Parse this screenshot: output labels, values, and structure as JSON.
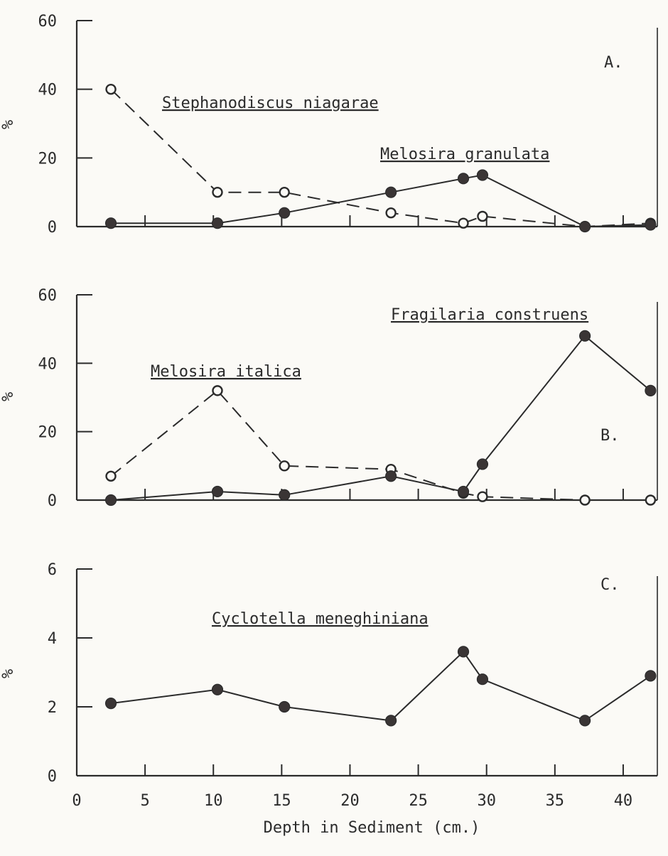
{
  "chart_data": [
    {
      "type": "line",
      "panel_label": "A.",
      "ylabel": "%",
      "ylim": [
        0,
        60
      ],
      "yticks": [
        0,
        20,
        40,
        60
      ],
      "series": [
        {
          "name": "Stephanodiscus niagarae",
          "marker": "open",
          "style": "dashed",
          "x": [
            2.5,
            10.3,
            15.2,
            23,
            28.3,
            29.7,
            37.2,
            42
          ],
          "y": [
            40,
            10,
            10,
            4,
            1,
            3,
            0,
            1
          ]
        },
        {
          "name": "Melosira granulata",
          "marker": "filled",
          "style": "solid",
          "x": [
            2.5,
            10.3,
            15.2,
            23,
            28.3,
            29.7,
            37.2,
            42
          ],
          "y": [
            1,
            1,
            4,
            10,
            14,
            15,
            0,
            0.5
          ]
        }
      ]
    },
    {
      "type": "line",
      "panel_label": "B.",
      "ylabel": "%",
      "ylim": [
        0,
        60
      ],
      "yticks": [
        0,
        20,
        40,
        60
      ],
      "series": [
        {
          "name": "Melosira italica",
          "marker": "open",
          "style": "dashed",
          "x": [
            2.5,
            10.3,
            15.2,
            23,
            28.3,
            29.7,
            37.2,
            42
          ],
          "y": [
            7,
            32,
            10,
            9,
            2,
            1,
            0,
            0
          ]
        },
        {
          "name": "Fragilaria construens",
          "marker": "filled",
          "style": "solid",
          "x": [
            2.5,
            10.3,
            15.2,
            23,
            28.3,
            29.7,
            37.2,
            42
          ],
          "y": [
            0,
            2.5,
            1.5,
            7,
            2.5,
            10.5,
            48,
            32
          ]
        }
      ]
    },
    {
      "type": "line",
      "panel_label": "C.",
      "ylabel": "%",
      "ylim": [
        0,
        6
      ],
      "yticks": [
        0,
        2,
        4,
        6
      ],
      "xlabel": "Depth in Sediment (cm.)",
      "xlim": [
        0,
        42.5
      ],
      "xticks": [
        0,
        5,
        10,
        15,
        20,
        25,
        30,
        35,
        40
      ],
      "series": [
        {
          "name": "Cyclotella meneghiniana",
          "marker": "filled",
          "style": "solid",
          "x": [
            2.5,
            10.3,
            15.2,
            23,
            28.3,
            29.7,
            37.2,
            42
          ],
          "y": [
            2.1,
            2.5,
            2.0,
            1.6,
            3.6,
            2.8,
            1.6,
            2.9
          ]
        }
      ]
    }
  ],
  "colors": {
    "ink": "#2b2b2b",
    "paper": "#fbfaf6",
    "marker_fill": "#3a3535"
  }
}
